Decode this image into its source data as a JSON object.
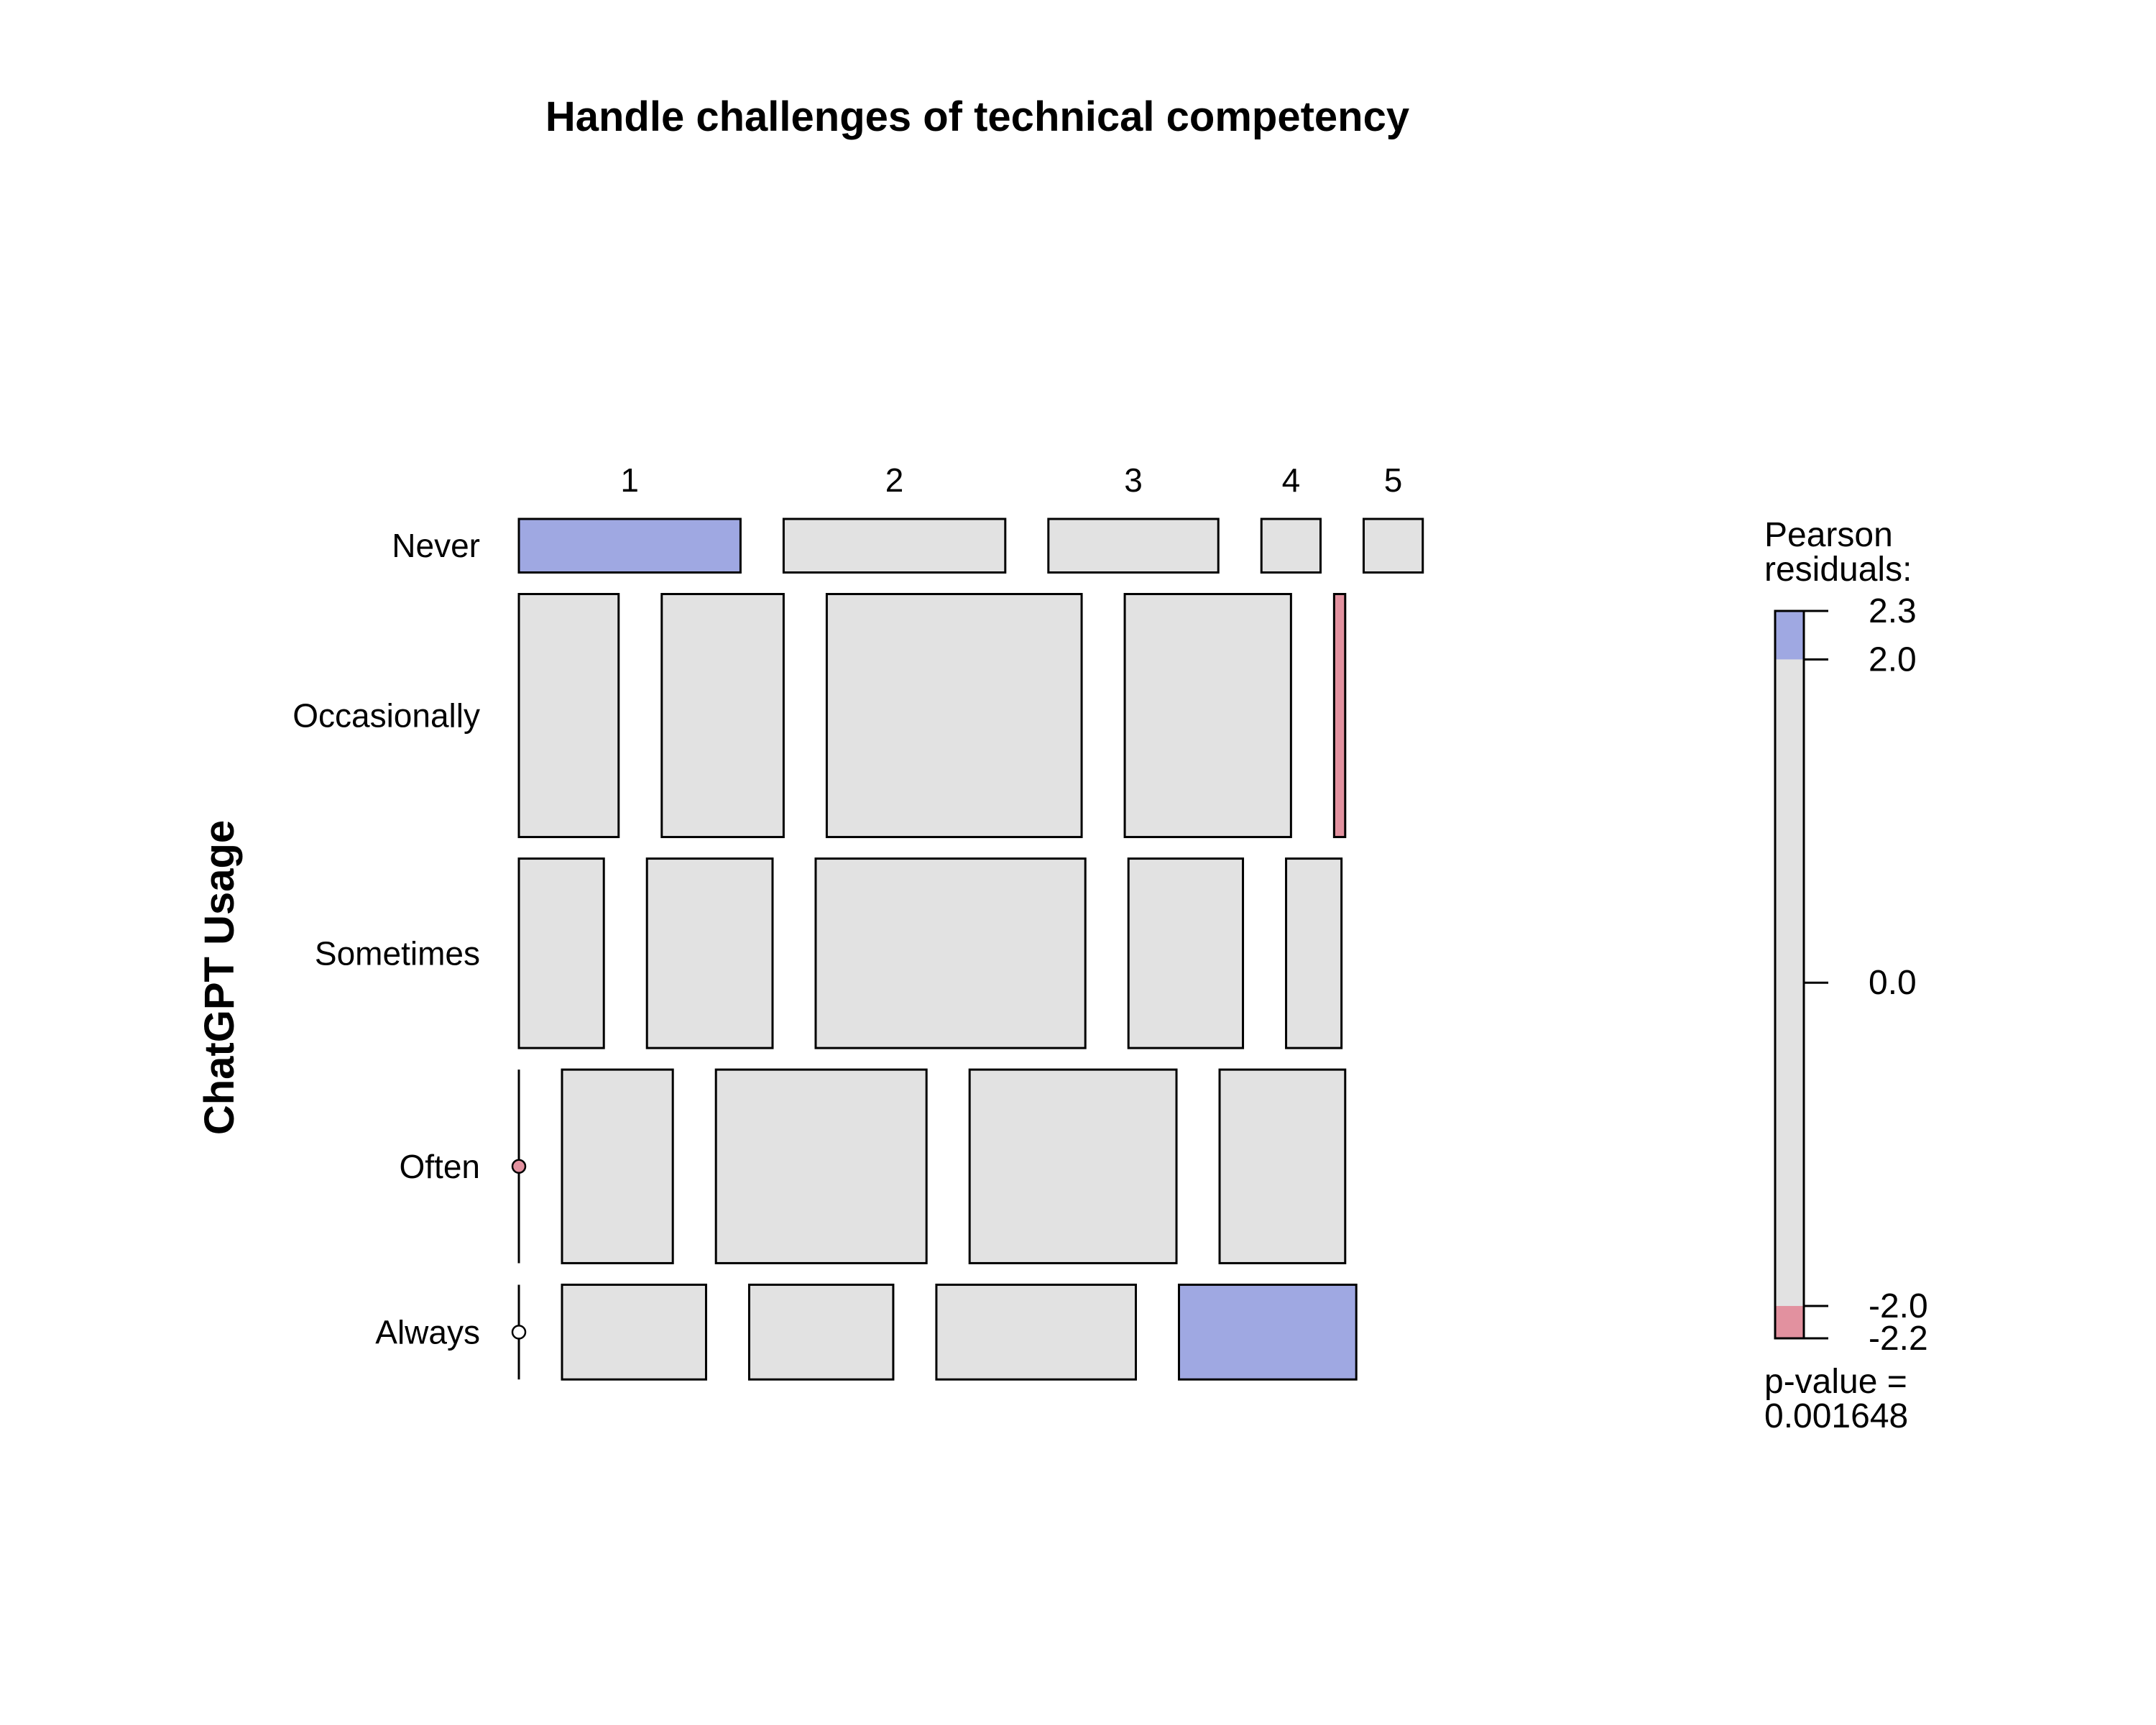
{
  "chart_data": {
    "type": "mosaic",
    "title": "Handle challenges of technical competency",
    "ylabel": "ChatGPT Usage",
    "x_levels": [
      "1",
      "2",
      "3",
      "4",
      "5"
    ],
    "y_levels": [
      "Never",
      "Occasionally",
      "Sometimes",
      "Often",
      "Always"
    ],
    "row_proportions": [
      0.065,
      0.295,
      0.23,
      0.235,
      0.115
    ],
    "cell_proportions": {
      "Never": [
        0.3,
        0.3,
        0.23,
        0.08,
        0.08
      ],
      "Occasionally": [
        0.135,
        0.165,
        0.345,
        0.225,
        0.015
      ],
      "Sometimes": [
        0.115,
        0.17,
        0.365,
        0.155,
        0.075
      ],
      "Often": [
        0.0,
        0.15,
        0.285,
        0.28,
        0.17
      ],
      "Always": [
        0.0,
        0.195,
        0.195,
        0.27,
        0.24
      ]
    },
    "residual_class": {
      "Never": [
        "pos",
        "neutral",
        "neutral",
        "neutral",
        "neutral"
      ],
      "Occasionally": [
        "neutral",
        "neutral",
        "neutral",
        "neutral",
        "neg"
      ],
      "Sometimes": [
        "neutral",
        "neutral",
        "neutral",
        "neutral",
        "neutral"
      ],
      "Often": [
        "neg",
        "neutral",
        "neutral",
        "neutral",
        "neutral"
      ],
      "Always": [
        "neutral",
        "neutral",
        "neutral",
        "neutral",
        "pos"
      ]
    },
    "colors": {
      "pos": "#9FA8E2",
      "neutral": "#E2E2E2",
      "neg": "#E2919F",
      "border": "#000000"
    },
    "legend": {
      "title_line1": "Pearson",
      "title_line2": "residuals:",
      "ticks": [
        "2.3",
        "2.0",
        "0.0",
        "-2.0",
        "-2.2"
      ],
      "tick_values": [
        2.3,
        2.0,
        0.0,
        -2.0,
        -2.2
      ],
      "range": [
        -2.2,
        2.3
      ],
      "pvalue_line1": "p-value =",
      "pvalue_line2": "0.001648"
    }
  }
}
